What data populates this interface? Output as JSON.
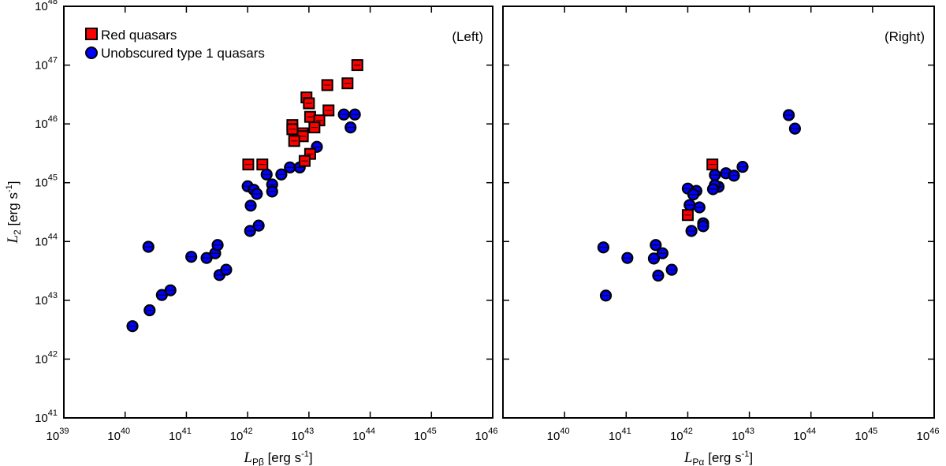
{
  "chart_data": [
    {
      "type": "scatter",
      "panel_label": "(Left)",
      "xlabel_main": "L",
      "xlabel_sub": "Pβ",
      "xlabel_unit": " [erg s",
      "xlabel_unit_exp": "-1",
      "xlabel_close": "]",
      "ylabel_main": "L",
      "ylabel_sub": "2",
      "ylabel_unit": " [erg s",
      "ylabel_unit_exp": "-1",
      "ylabel_close": "]",
      "xscale": "log",
      "yscale": "log",
      "xlim_log10": [
        39,
        46
      ],
      "ylim_log10": [
        41,
        48
      ],
      "x_ticks": [
        "39",
        "40",
        "41",
        "42",
        "43",
        "44",
        "45",
        "46"
      ],
      "y_ticks": [
        "41",
        "42",
        "43",
        "44",
        "45",
        "46",
        "47",
        "48"
      ],
      "tick_base": "10",
      "legend": {
        "placement": "top-left",
        "entries": [
          "Red quasars",
          "Unobscured type 1 quasars"
        ]
      },
      "series": [
        {
          "name": "Red quasars",
          "color": "#ff0000",
          "marker": "square",
          "log_x": [
            43.79,
            43.3,
            43.63,
            42.96,
            43.0,
            43.32,
            43.02,
            43.17,
            43.09,
            42.73,
            42.73,
            42.9,
            42.9,
            42.76,
            43.02,
            42.93,
            42.01,
            42.24
          ],
          "log_y": [
            47.0,
            46.66,
            46.69,
            46.45,
            46.35,
            46.23,
            46.12,
            46.06,
            45.94,
            45.98,
            45.91,
            45.84,
            45.79,
            45.71,
            45.49,
            45.37,
            45.31,
            45.31
          ]
        },
        {
          "name": "Unobscured type 1 quasars",
          "color": "#0000ff",
          "marker": "circle",
          "log_x": [
            40.12,
            40.4,
            40.6,
            40.74,
            41.08,
            40.38,
            41.33,
            41.47,
            41.51,
            41.54,
            41.65,
            42.04,
            42.18,
            42.05,
            42.0,
            42.1,
            42.15,
            42.31,
            42.4,
            42.4,
            42.55,
            42.69,
            42.85,
            43.13,
            43.57,
            43.75,
            43.68
          ],
          "log_y": [
            42.56,
            42.83,
            43.09,
            43.17,
            43.74,
            43.91,
            43.72,
            43.8,
            43.94,
            43.43,
            43.52,
            44.18,
            44.27,
            44.61,
            44.94,
            44.88,
            44.81,
            45.14,
            44.97,
            44.85,
            45.14,
            45.26,
            45.26,
            45.61,
            46.16,
            46.16,
            45.94
          ]
        }
      ]
    },
    {
      "type": "scatter",
      "panel_label": "(Right)",
      "xlabel_main": "L",
      "xlabel_sub": "Pα",
      "xlabel_unit": " [erg s",
      "xlabel_unit_exp": "-1",
      "xlabel_close": "]",
      "xscale": "log",
      "yscale": "log",
      "xlim_log10": [
        39,
        46
      ],
      "ylim_log10": [
        41,
        48
      ],
      "x_ticks": [
        "40",
        "41",
        "42",
        "43",
        "44",
        "45",
        "46"
      ],
      "tick_base": "10",
      "series": [
        {
          "name": "Red quasars",
          "color": "#ff0000",
          "marker": "square",
          "log_x": [
            42.4,
            42.0
          ],
          "log_y": [
            45.31,
            44.45
          ]
        },
        {
          "name": "Unobscured type 1 quasars",
          "color": "#0000ff",
          "marker": "circle",
          "log_x": [
            43.64,
            43.74,
            42.89,
            42.62,
            42.75,
            42.44,
            42.5,
            42.44,
            42.41,
            42.0,
            42.14,
            42.09,
            42.03,
            42.19,
            42.25,
            42.25,
            42.06,
            40.63,
            41.02,
            41.48,
            41.59,
            41.45,
            41.74,
            41.52,
            40.67
          ],
          "log_y": [
            46.15,
            45.92,
            45.27,
            45.16,
            45.12,
            45.13,
            44.93,
            44.96,
            44.89,
            44.9,
            44.86,
            44.8,
            44.62,
            44.58,
            44.31,
            44.26,
            44.18,
            43.9,
            43.72,
            43.94,
            43.8,
            43.71,
            43.52,
            43.42,
            43.08
          ]
        }
      ]
    }
  ]
}
